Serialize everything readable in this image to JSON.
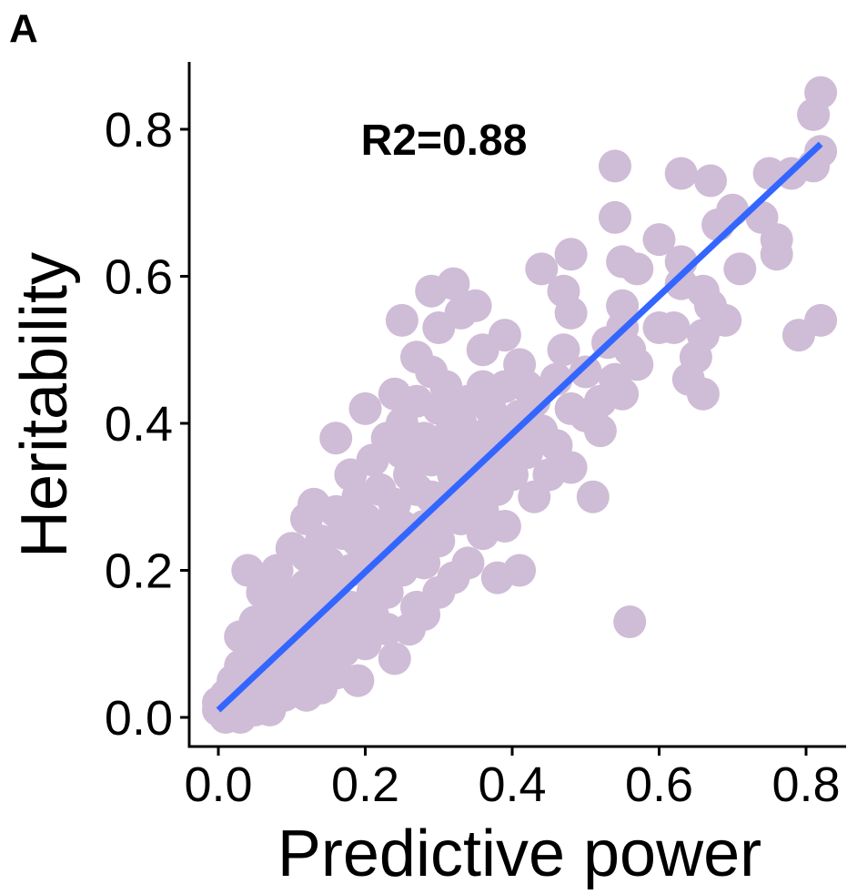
{
  "panel_label": "A",
  "chart_data": {
    "type": "scatter",
    "xlabel": "Predictive power",
    "ylabel": "Heritability",
    "annotation": "R2=0.88",
    "xlim": [
      -0.04,
      0.84
    ],
    "ylim": [
      -0.04,
      0.89
    ],
    "xticks": [
      0.0,
      0.2,
      0.4,
      0.6,
      0.8
    ],
    "yticks": [
      0.0,
      0.2,
      0.4,
      0.6,
      0.8
    ],
    "xtick_labels": [
      "0.0",
      "0.2",
      "0.4",
      "0.6",
      "0.8"
    ],
    "ytick_labels": [
      "0.0",
      "0.2",
      "0.4",
      "0.6",
      "0.8"
    ],
    "grid": false,
    "point_color": "#CFBCD6",
    "line_color": "#3366FF",
    "fit_line": {
      "x": [
        0.0,
        0.82
      ],
      "y": [
        0.01,
        0.78
      ]
    },
    "series": [
      {
        "points": [
          [
            0.82,
            0.85
          ],
          [
            0.81,
            0.82
          ],
          [
            0.82,
            0.77
          ],
          [
            0.81,
            0.75
          ],
          [
            0.78,
            0.74
          ],
          [
            0.75,
            0.74
          ],
          [
            0.54,
            0.75
          ],
          [
            0.63,
            0.74
          ],
          [
            0.67,
            0.73
          ],
          [
            0.7,
            0.69
          ],
          [
            0.68,
            0.67
          ],
          [
            0.74,
            0.68
          ],
          [
            0.76,
            0.65
          ],
          [
            0.76,
            0.63
          ],
          [
            0.54,
            0.68
          ],
          [
            0.6,
            0.65
          ],
          [
            0.63,
            0.62
          ],
          [
            0.48,
            0.63
          ],
          [
            0.55,
            0.62
          ],
          [
            0.57,
            0.61
          ],
          [
            0.55,
            0.56
          ],
          [
            0.44,
            0.61
          ],
          [
            0.47,
            0.58
          ],
          [
            0.48,
            0.55
          ],
          [
            0.47,
            0.5
          ],
          [
            0.55,
            0.53
          ],
          [
            0.6,
            0.53
          ],
          [
            0.62,
            0.53
          ],
          [
            0.63,
            0.59
          ],
          [
            0.66,
            0.58
          ],
          [
            0.67,
            0.56
          ],
          [
            0.69,
            0.54
          ],
          [
            0.66,
            0.52
          ],
          [
            0.65,
            0.49
          ],
          [
            0.64,
            0.46
          ],
          [
            0.66,
            0.44
          ],
          [
            0.71,
            0.61
          ],
          [
            0.82,
            0.54
          ],
          [
            0.79,
            0.52
          ],
          [
            0.57,
            0.48
          ],
          [
            0.54,
            0.46
          ],
          [
            0.55,
            0.44
          ],
          [
            0.48,
            0.42
          ],
          [
            0.52,
            0.39
          ],
          [
            0.48,
            0.34
          ],
          [
            0.45,
            0.33
          ],
          [
            0.43,
            0.3
          ],
          [
            0.51,
            0.3
          ],
          [
            0.56,
            0.13
          ],
          [
            0.32,
            0.59
          ],
          [
            0.29,
            0.58
          ],
          [
            0.3,
            0.53
          ],
          [
            0.33,
            0.55
          ],
          [
            0.36,
            0.5
          ],
          [
            0.25,
            0.54
          ],
          [
            0.27,
            0.49
          ],
          [
            0.29,
            0.47
          ],
          [
            0.25,
            0.4
          ],
          [
            0.27,
            0.43
          ],
          [
            0.23,
            0.38
          ],
          [
            0.31,
            0.45
          ],
          [
            0.34,
            0.43
          ],
          [
            0.37,
            0.42
          ],
          [
            0.39,
            0.45
          ],
          [
            0.41,
            0.48
          ],
          [
            0.42,
            0.45
          ],
          [
            0.41,
            0.38
          ],
          [
            0.38,
            0.35
          ],
          [
            0.38,
            0.31
          ],
          [
            0.35,
            0.3
          ],
          [
            0.33,
            0.27
          ],
          [
            0.36,
            0.25
          ],
          [
            0.41,
            0.2
          ],
          [
            0.38,
            0.19
          ],
          [
            0.32,
            0.19
          ],
          [
            0.28,
            0.21
          ],
          [
            0.25,
            0.2
          ],
          [
            0.3,
            0.17
          ],
          [
            0.27,
            0.15
          ],
          [
            0.23,
            0.17
          ],
          [
            0.2,
            0.42
          ],
          [
            0.16,
            0.38
          ],
          [
            0.18,
            0.33
          ],
          [
            0.21,
            0.35
          ],
          [
            0.19,
            0.3
          ],
          [
            0.16,
            0.28
          ],
          [
            0.13,
            0.29
          ],
          [
            0.12,
            0.27
          ],
          [
            0.14,
            0.24
          ],
          [
            0.17,
            0.25
          ],
          [
            0.2,
            0.27
          ],
          [
            0.24,
            0.29
          ],
          [
            0.27,
            0.31
          ],
          [
            0.29,
            0.35
          ],
          [
            0.33,
            0.36
          ],
          [
            0.31,
            0.38
          ],
          [
            0.25,
            0.36
          ],
          [
            0.22,
            0.31
          ],
          [
            0.24,
            0.24
          ],
          [
            0.21,
            0.22
          ],
          [
            0.18,
            0.2
          ],
          [
            0.15,
            0.21
          ],
          [
            0.12,
            0.22
          ],
          [
            0.1,
            0.23
          ],
          [
            0.08,
            0.2
          ],
          [
            0.04,
            0.2
          ],
          [
            0.06,
            0.17
          ],
          [
            0.09,
            0.17
          ],
          [
            0.12,
            0.18
          ],
          [
            0.15,
            0.16
          ],
          [
            0.18,
            0.15
          ],
          [
            0.21,
            0.14
          ],
          [
            0.23,
            0.12
          ],
          [
            0.2,
            0.1
          ],
          [
            0.17,
            0.09
          ],
          [
            0.14,
            0.11
          ],
          [
            0.11,
            0.13
          ],
          [
            0.08,
            0.14
          ],
          [
            0.05,
            0.13
          ],
          [
            0.03,
            0.11
          ],
          [
            0.05,
            0.09
          ],
          [
            0.08,
            0.1
          ],
          [
            0.1,
            0.08
          ],
          [
            0.13,
            0.07
          ],
          [
            0.16,
            0.06
          ],
          [
            0.19,
            0.05
          ],
          [
            0.08,
            0.05
          ],
          [
            0.06,
            0.07
          ],
          [
            0.03,
            0.07
          ],
          [
            0.02,
            0.05
          ],
          [
            0.04,
            0.04
          ],
          [
            0.06,
            0.03
          ],
          [
            0.09,
            0.03
          ],
          [
            0.12,
            0.03
          ],
          [
            0.03,
            0.02
          ],
          [
            0.01,
            0.03
          ],
          [
            0.02,
            0.01
          ],
          [
            0.0,
            0.01
          ],
          [
            0.01,
            0.0
          ],
          [
            0.03,
            0.0
          ],
          [
            0.05,
            0.01
          ],
          [
            0.07,
            0.01
          ],
          [
            0.0,
            0.02
          ],
          [
            0.11,
            0.05
          ],
          [
            0.14,
            0.04
          ],
          [
            0.24,
            0.08
          ],
          [
            0.26,
            0.12
          ],
          [
            0.28,
            0.14
          ],
          [
            0.3,
            0.24
          ],
          [
            0.34,
            0.21
          ],
          [
            0.36,
            0.28
          ],
          [
            0.39,
            0.26
          ],
          [
            0.4,
            0.33
          ],
          [
            0.28,
            0.26
          ],
          [
            0.22,
            0.19
          ],
          [
            0.17,
            0.13
          ],
          [
            0.14,
            0.14
          ],
          [
            0.11,
            0.1
          ],
          [
            0.09,
            0.12
          ],
          [
            0.07,
            0.06
          ],
          [
            0.22,
            0.26
          ],
          [
            0.26,
            0.33
          ],
          [
            0.32,
            0.31
          ],
          [
            0.35,
            0.34
          ],
          [
            0.37,
            0.39
          ],
          [
            0.3,
            0.42
          ],
          [
            0.24,
            0.44
          ],
          [
            0.28,
            0.38
          ],
          [
            0.19,
            0.24
          ],
          [
            0.16,
            0.19
          ],
          [
            0.13,
            0.16
          ],
          [
            0.1,
            0.15
          ],
          [
            0.07,
            0.15
          ],
          [
            0.15,
            0.09
          ],
          [
            0.18,
            0.11
          ],
          [
            0.21,
            0.17
          ],
          [
            0.23,
            0.21
          ],
          [
            0.26,
            0.23
          ],
          [
            0.31,
            0.28
          ],
          [
            0.34,
            0.32
          ],
          [
            0.38,
            0.37
          ],
          [
            0.39,
            0.4
          ],
          [
            0.36,
            0.45
          ],
          [
            0.33,
            0.4
          ],
          [
            0.2,
            0.14
          ],
          [
            0.09,
            0.07
          ],
          [
            0.12,
            0.09
          ],
          [
            0.05,
            0.05
          ],
          [
            0.04,
            0.06
          ],
          [
            0.15,
            0.12
          ],
          [
            0.25,
            0.26
          ],
          [
            0.29,
            0.3
          ],
          [
            0.32,
            0.33
          ],
          [
            0.35,
            0.38
          ],
          [
            0.37,
            0.32
          ],
          [
            0.41,
            0.41
          ],
          [
            0.44,
            0.39
          ],
          [
            0.46,
            0.46
          ],
          [
            0.5,
            0.47
          ],
          [
            0.53,
            0.51
          ],
          [
            0.56,
            0.5
          ],
          [
            0.52,
            0.43
          ],
          [
            0.5,
            0.41
          ],
          [
            0.46,
            0.37
          ],
          [
            0.42,
            0.36
          ],
          [
            0.43,
            0.43
          ],
          [
            0.39,
            0.52
          ],
          [
            0.35,
            0.56
          ]
        ]
      }
    ]
  }
}
